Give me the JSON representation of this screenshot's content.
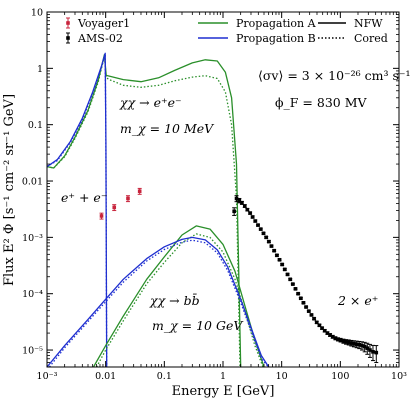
{
  "chart_data": {
    "type": "line",
    "xlabel": "Energy E [GeV]",
    "ylabel": "Flux E² Φ [s⁻¹ cm⁻² sr⁻¹ GeV]",
    "x_scale": "log",
    "y_scale": "log",
    "xlim": [
      0.001,
      1000
    ],
    "ylim": [
      5e-06,
      10
    ],
    "x_ticks": [
      0.001,
      0.01,
      0.1,
      1,
      10,
      100,
      1000
    ],
    "x_tick_labels": [
      "10⁻³",
      "0.01",
      "0.1",
      "1",
      "10",
      "100",
      "10³"
    ],
    "y_ticks": [
      1e-05,
      0.0001,
      0.001,
      0.01,
      0.1,
      1,
      10
    ],
    "y_tick_labels": [
      "10⁻⁵",
      "10⁻⁴",
      "10⁻³",
      "0.01",
      "0.1",
      "1",
      "10"
    ],
    "legend": [
      {
        "label": "Voyager1",
        "kind": "errorbar",
        "color": "#c8243c"
      },
      {
        "label": "AMS-02",
        "kind": "errorbar",
        "color": "#000000"
      },
      {
        "label": "Propagation A",
        "kind": "line",
        "color": "#2a8f2a"
      },
      {
        "label": "Propagation B",
        "kind": "line",
        "color": "#1f2fd0"
      },
      {
        "label": "NFW",
        "kind": "line",
        "color": "#000000",
        "dash": "solid"
      },
      {
        "label": "Cored",
        "kind": "line",
        "color": "#000000",
        "dash": "dotted"
      }
    ],
    "annotations": {
      "sigma_v": "⟨σv⟩ = 3 × 10⁻²⁶ cm³ s⁻¹",
      "phi_f": "ϕ_F = 830 MV",
      "ee_channel": "χχ → e⁺e⁻",
      "ee_mass": "m_χ = 10 MeV",
      "bb_channel": "χχ → bb̄",
      "bb_mass": "m_χ = 10 GeV",
      "voyager_label": "e⁺ + e⁻",
      "ams_label": "2 × e⁺"
    },
    "series": [
      {
        "name": "Propagation A",
        "profile": "NFW",
        "color": "#2a8f2a",
        "dash": "solid",
        "x": [
          0.001,
          0.0013,
          0.002,
          0.003,
          0.005,
          0.0075,
          0.0095,
          0.0102,
          0.012,
          0.02,
          0.04,
          0.08,
          0.15,
          0.3,
          0.5,
          0.8,
          1.1,
          1.4,
          1.7,
          2.0
        ],
        "y": [
          0.018,
          0.017,
          0.028,
          0.06,
          0.18,
          0.62,
          1.75,
          0.75,
          0.72,
          0.63,
          0.58,
          0.68,
          0.92,
          1.25,
          1.42,
          1.35,
          0.85,
          0.3,
          0.02,
          5e-06
        ]
      },
      {
        "name": "Propagation A",
        "profile": "Cored",
        "color": "#2a8f2a",
        "dash": "dotted",
        "x": [
          0.001,
          0.0013,
          0.002,
          0.003,
          0.005,
          0.0075,
          0.0095,
          0.0102,
          0.012,
          0.02,
          0.04,
          0.08,
          0.15,
          0.3,
          0.5,
          0.8,
          1.1,
          1.4,
          1.7,
          1.95
        ],
        "y": [
          0.018,
          0.017,
          0.027,
          0.057,
          0.17,
          0.58,
          1.65,
          0.68,
          0.62,
          0.5,
          0.46,
          0.5,
          0.6,
          0.7,
          0.74,
          0.66,
          0.38,
          0.1,
          0.005,
          5e-06
        ]
      },
      {
        "name": "Propagation B",
        "profile": "NFW",
        "color": "#1f2fd0",
        "dash": "solid",
        "x": [
          0.001,
          0.0015,
          0.0025,
          0.004,
          0.006,
          0.0085,
          0.0098,
          0.0101,
          0.0104
        ],
        "y": [
          0.018,
          0.024,
          0.05,
          0.13,
          0.38,
          1.1,
          1.85,
          0.05,
          5e-06
        ]
      },
      {
        "name": "Propagation B",
        "profile": "Cored",
        "color": "#1f2fd0",
        "dash": "dotted",
        "x": [
          0.001,
          0.0015,
          0.0025,
          0.004,
          0.006,
          0.0085,
          0.0098,
          0.0101,
          0.0104
        ],
        "y": [
          0.018,
          0.023,
          0.048,
          0.12,
          0.36,
          1.05,
          1.75,
          0.05,
          5e-06
        ]
      },
      {
        "name": "Propagation A",
        "profile": "NFW",
        "channel": "bb",
        "color": "#2a8f2a",
        "dash": "solid",
        "x": [
          0.0062,
          0.01,
          0.02,
          0.05,
          0.1,
          0.2,
          0.35,
          0.6,
          1.0,
          1.6,
          2.5,
          3.5,
          5.0
        ],
        "y": [
          5e-06,
          1.2e-05,
          4e-05,
          0.00018,
          0.00045,
          0.0011,
          0.0016,
          0.0014,
          0.00075,
          0.00025,
          5e-05,
          1.5e-05,
          5e-06
        ]
      },
      {
        "name": "Propagation A",
        "profile": "Cored",
        "channel": "bb",
        "color": "#2a8f2a",
        "dash": "dotted",
        "x": [
          0.007,
          0.01,
          0.02,
          0.05,
          0.1,
          0.2,
          0.35,
          0.6,
          1.0,
          1.6,
          2.5,
          3.5,
          4.8
        ],
        "y": [
          5e-06,
          1e-05,
          3.3e-05,
          0.00015,
          0.00036,
          0.0008,
          0.00115,
          0.001,
          0.00055,
          0.00018,
          4e-05,
          1.2e-05,
          5e-06
        ]
      },
      {
        "name": "Propagation B",
        "profile": "NFW",
        "channel": "bb",
        "color": "#1f2fd0",
        "dash": "solid",
        "x": [
          0.001,
          0.002,
          0.005,
          0.01,
          0.02,
          0.05,
          0.1,
          0.2,
          0.3,
          0.5,
          0.8,
          1.2,
          2.0,
          3.0,
          4.5,
          6.0
        ],
        "y": [
          5e-06,
          1.2e-05,
          3.5e-05,
          8e-05,
          0.00018,
          0.00042,
          0.00068,
          0.00092,
          0.001,
          0.0009,
          0.0006,
          0.0003,
          8e-05,
          2.5e-05,
          8e-06,
          5e-06
        ]
      },
      {
        "name": "Propagation B",
        "profile": "Cored",
        "channel": "bb",
        "color": "#1f2fd0",
        "dash": "dotted",
        "x": [
          0.0011,
          0.002,
          0.005,
          0.01,
          0.02,
          0.05,
          0.1,
          0.2,
          0.3,
          0.5,
          0.8,
          1.2,
          2.0,
          3.0,
          4.5,
          6.0
        ],
        "y": [
          5e-06,
          1.1e-05,
          3.2e-05,
          7.2e-05,
          0.00016,
          0.00038,
          0.00061,
          0.00082,
          0.00089,
          0.0008,
          0.00053,
          0.00026,
          7e-05,
          2.2e-05,
          7e-06,
          5e-06
        ]
      }
    ],
    "data_points": [
      {
        "name": "Voyager1",
        "color": "#c8243c",
        "x": [
          0.0085,
          0.014,
          0.024,
          0.038
        ],
        "y": [
          0.0024,
          0.0034,
          0.0049,
          0.0066
        ]
      },
      {
        "name": "AMS-02",
        "color": "#000000",
        "x": [
          1.55,
          1.7,
          1.9,
          2.1,
          2.35,
          2.6,
          2.9,
          3.2,
          3.55,
          3.95,
          4.4,
          4.9,
          5.45,
          6.05,
          6.7,
          7.45,
          8.3,
          9.2,
          10.2,
          11.3,
          12.6,
          14.0,
          15.5,
          17.2,
          19.1,
          21.2,
          23.5,
          26.1,
          29.0,
          32.2,
          35.7,
          39.6,
          44.0,
          48.8,
          54.2,
          60.2,
          66.8,
          74.2,
          82.3,
          91.4,
          101,
          113,
          125,
          139,
          154,
          171,
          190,
          210,
          234,
          260,
          288,
          320,
          360,
          410
        ],
        "y": [
          0.0029,
          0.0049,
          0.0045,
          0.0041,
          0.0036,
          0.0031,
          0.0027,
          0.0023,
          0.00195,
          0.00165,
          0.0014,
          0.00118,
          0.001,
          0.00084,
          0.0007,
          0.00058,
          0.00048,
          0.0004,
          0.00033,
          0.00027,
          0.00022,
          0.00018,
          0.000148,
          0.000122,
          0.0001,
          8.3e-05,
          6.9e-05,
          5.8e-05,
          4.9e-05,
          4.2e-05,
          3.6e-05,
          3.1e-05,
          2.75e-05,
          2.45e-05,
          2.2e-05,
          2e-05,
          1.85e-05,
          1.72e-05,
          1.62e-05,
          1.55e-05,
          1.5e-05,
          1.44e-05,
          1.4e-05,
          1.37e-05,
          1.33e-05,
          1.3e-05,
          1.27e-05,
          1.24e-05,
          1.2e-05,
          1.15e-05,
          1.08e-05,
          1e-05,
          9.3e-06,
          9e-06
        ],
        "err": [
          0.00045,
          0.0006,
          0.0004,
          0.00025,
          0.0002,
          0.00015,
          0.00012,
          0.0001,
          8e-05,
          6e-05,
          5e-05,
          4e-05,
          3.5e-05,
          3e-05,
          2.5e-05,
          2e-05,
          1.6e-05,
          1.3e-05,
          1.1e-05,
          9e-06,
          7e-06,
          5.5e-06,
          4.5e-06,
          3.8e-06,
          3e-06,
          2.6e-06,
          2.2e-06,
          1.9e-06,
          1.7e-06,
          1.5e-06,
          1.4e-06,
          1.3e-06,
          1.2e-06,
          1.1e-06,
          1.05e-06,
          1e-06,
          1e-06,
          1e-06,
          1e-06,
          1e-06,
          1.1e-06,
          1.2e-06,
          1.3e-06,
          1.4e-06,
          1.5e-06,
          1.6e-06,
          1.7e-06,
          1.8e-06,
          2e-06,
          2.2e-06,
          2.4e-06,
          2.6e-06,
          2.8e-06,
          3e-06
        ]
      }
    ]
  }
}
